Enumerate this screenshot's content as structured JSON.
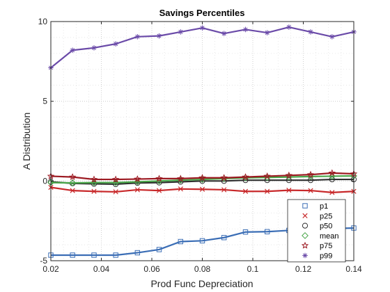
{
  "chart_data": {
    "type": "line",
    "title": "Savings Percentiles",
    "xlabel": "Prod Func Depreciation",
    "ylabel": "A Distribution",
    "xlim": [
      0.02,
      0.14
    ],
    "ylim": [
      -5,
      10
    ],
    "xticks": [
      0.02,
      0.04,
      0.06,
      0.08,
      0.1,
      0.12,
      0.14
    ],
    "xtick_labels": [
      "0.02",
      "0.04",
      "0.06",
      "0.08",
      "0.1",
      "0.12",
      "0.14"
    ],
    "yticks": [
      -5,
      0,
      5,
      10
    ],
    "ytick_labels": [
      "-5",
      "0",
      "5",
      "10"
    ],
    "grid": "dotted, major and minor",
    "legend_position": "bottom-right",
    "x": [
      0.02,
      0.0286,
      0.0371,
      0.0457,
      0.0543,
      0.0629,
      0.0714,
      0.08,
      0.0886,
      0.0971,
      0.1057,
      0.1143,
      0.1229,
      0.1314,
      0.14
    ],
    "series": [
      {
        "name": "p1",
        "color": "#3a6db5",
        "marker": "square",
        "values": [
          -4.65,
          -4.65,
          -4.65,
          -4.65,
          -4.5,
          -4.3,
          -3.8,
          -3.75,
          -3.55,
          -3.2,
          -3.18,
          -3.1,
          -3.05,
          -2.98,
          -2.95
        ]
      },
      {
        "name": "p25",
        "color": "#c8282a",
        "marker": "x",
        "values": [
          -0.4,
          -0.6,
          -0.65,
          -0.68,
          -0.55,
          -0.6,
          -0.5,
          -0.52,
          -0.55,
          -0.65,
          -0.65,
          -0.58,
          -0.6,
          -0.72,
          -0.65
        ]
      },
      {
        "name": "p50",
        "color": "#2e2e2e",
        "marker": "circle",
        "values": [
          -0.05,
          -0.15,
          -0.18,
          -0.2,
          -0.12,
          -0.1,
          -0.05,
          0.0,
          0.0,
          0.05,
          0.05,
          0.05,
          0.05,
          0.1,
          0.1
        ]
      },
      {
        "name": "mean",
        "color": "#4aa64a",
        "marker": "diamond",
        "values": [
          -0.1,
          -0.12,
          -0.1,
          -0.1,
          -0.05,
          0.0,
          0.05,
          0.1,
          0.15,
          0.2,
          0.22,
          0.25,
          0.28,
          0.3,
          0.32
        ]
      },
      {
        "name": "p75",
        "color": "#9c1a22",
        "marker": "star",
        "values": [
          0.3,
          0.25,
          0.1,
          0.1,
          0.12,
          0.15,
          0.15,
          0.2,
          0.2,
          0.25,
          0.3,
          0.35,
          0.4,
          0.5,
          0.45
        ]
      },
      {
        "name": "p99",
        "color": "#6a4aa8",
        "marker": "asterisk",
        "values": [
          7.1,
          8.2,
          8.35,
          8.6,
          9.05,
          9.1,
          9.35,
          9.6,
          9.25,
          9.5,
          9.3,
          9.65,
          9.35,
          9.05,
          9.35
        ]
      }
    ]
  }
}
